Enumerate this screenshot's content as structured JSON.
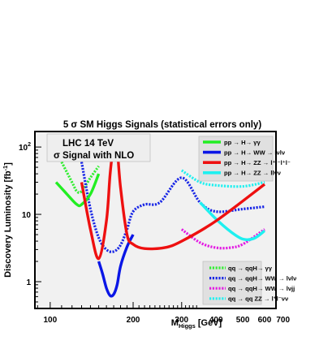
{
  "chart_data": {
    "type": "line",
    "title": "5 σ SM Higgs Signals (statistical errors only)",
    "xlabel": "M",
    "xlabel_sub": "Higgs",
    "xlabel_unit": " [GeV]",
    "ylabel": "Discovery Luminosity [fb",
    "ylabel_sup": "-1",
    "ylabel_end": "]",
    "x_scale": "log",
    "y_scale": "log",
    "xlim": [
      88,
      660
    ],
    "ylim": [
      0.4,
      170
    ],
    "x_ticks": [
      {
        "v": 100,
        "label": "100"
      },
      {
        "v": 200,
        "label": "200"
      },
      {
        "v": 300,
        "label": "300"
      },
      {
        "v": 400,
        "label": "400"
      },
      {
        "v": 500,
        "label": "500"
      },
      {
        "v": 600,
        "label": "600"
      },
      {
        "v": 700,
        "label": "700"
      }
    ],
    "y_ticks": [
      {
        "v": 1,
        "label": "1"
      },
      {
        "v": 10,
        "label": "10"
      },
      {
        "v": 100,
        "label": "10",
        "sup": "2"
      }
    ],
    "info_lines": [
      "LHC 14 TeV",
      "σ Signal with NLO"
    ],
    "series": [
      {
        "name": "pp → H→ γγ",
        "color": "#22ee22",
        "dashed": false,
        "x": [
          105,
          115,
          125,
          130,
          140,
          150
        ],
        "y": [
          30,
          20,
          14,
          14,
          20,
          40
        ]
      },
      {
        "name": "pp → H→ WW → lνlν",
        "color": "#0a16e6",
        "dashed": false,
        "x": [
          150,
          155,
          160,
          165,
          170,
          175,
          180,
          190,
          200
        ],
        "y": [
          2.0,
          1.3,
          0.8,
          0.62,
          0.65,
          0.9,
          1.7,
          3.3,
          5.0
        ]
      },
      {
        "name": "pp → H→ ZZ → l⁺l⁻l⁺l⁻",
        "color": "#ee1010",
        "dashed": false,
        "x": [
          130,
          140,
          150,
          160,
          165,
          170,
          175,
          180,
          190,
          200,
          220,
          260,
          300,
          400,
          600
        ],
        "y": [
          30,
          6,
          2.2,
          8,
          40,
          100,
          90,
          25,
          5.0,
          3.6,
          3.1,
          3.2,
          4.0,
          8.0,
          28
        ]
      },
      {
        "name": "pp → H→ ZZ → llνν",
        "color": "#1ef0f0",
        "dashed": false,
        "x": [
          350,
          400,
          450,
          500,
          550,
          600
        ],
        "y": [
          15,
          8.5,
          5.6,
          4.3,
          4.4,
          5.7
        ]
      },
      {
        "name": "qq → qqH→ γγ",
        "color": "#33ee33",
        "dashed": true,
        "x": [
          110,
          120,
          125,
          130,
          140,
          150
        ],
        "y": [
          60,
          30,
          22,
          22,
          35,
          52
        ]
      },
      {
        "name": "qq → qqH→ WW → lνlν",
        "color": "#1826e6",
        "dashed": true,
        "x": [
          130,
          140,
          150,
          160,
          170,
          180,
          190,
          200,
          220,
          250,
          300,
          350,
          400,
          500,
          600
        ],
        "y": [
          60,
          12,
          4.5,
          3.0,
          2.8,
          3.5,
          6.0,
          11,
          14,
          15,
          35,
          15,
          11,
          12,
          13
        ]
      },
      {
        "name": "qq → qqH→ WW → lνjj",
        "color": "#e31be3",
        "dashed": true,
        "x": [
          300,
          350,
          400,
          450,
          500,
          600
        ],
        "y": [
          6.0,
          3.8,
          3.2,
          3.2,
          3.6,
          6.0
        ]
      },
      {
        "name": "qq → qq ZZ → l⁺l⁻νν",
        "color": "#22f0f0",
        "dashed": true,
        "x": [
          300,
          350,
          400,
          500,
          600
        ],
        "y": [
          45,
          30,
          27,
          26,
          30
        ]
      }
    ]
  }
}
